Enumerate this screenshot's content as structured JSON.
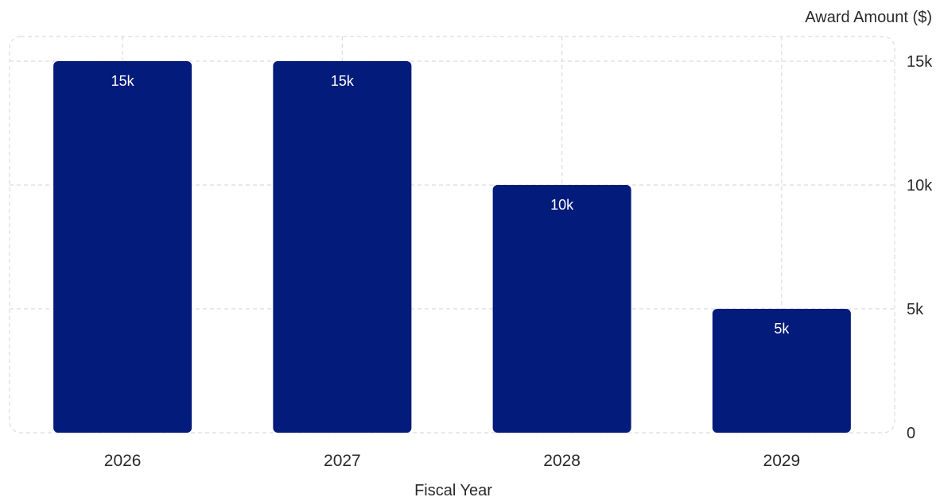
{
  "chart_data": {
    "type": "bar",
    "categories": [
      "2026",
      "2027",
      "2028",
      "2029"
    ],
    "values": [
      15000,
      15000,
      10000,
      5000
    ],
    "data_labels": [
      "15k",
      "15k",
      "10k",
      "5k"
    ],
    "xlabel": "Fiscal Year",
    "ylabel": "Award Amount ($)",
    "ylim": [
      0,
      15000
    ],
    "y_ticks": [
      0,
      5000,
      10000,
      15000
    ],
    "y_tick_labels": [
      "0",
      "5k",
      "10k",
      "15k"
    ],
    "y_axis_side": "right",
    "grid": true,
    "legend": "none",
    "bar_color": "#031b7a",
    "grid_color": "#dcdcdc"
  }
}
